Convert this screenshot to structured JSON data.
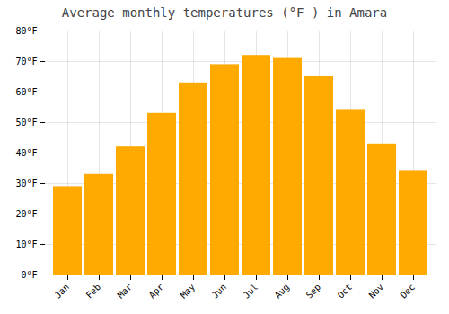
{
  "chart_data": {
    "type": "bar",
    "title": "Average monthly temperatures (°F ) in Amara",
    "categories": [
      "Jan",
      "Feb",
      "Mar",
      "Apr",
      "May",
      "Jun",
      "Jul",
      "Aug",
      "Sep",
      "Oct",
      "Nov",
      "Dec"
    ],
    "values": [
      29,
      33,
      42,
      53,
      63,
      69,
      72,
      71,
      65,
      54,
      43,
      34
    ],
    "color": "#FFAA00",
    "ylim": [
      0,
      80
    ],
    "yticks": [
      {
        "value": 0,
        "label": "0°F"
      },
      {
        "value": 10,
        "label": "10°F"
      },
      {
        "value": 20,
        "label": "20°F"
      },
      {
        "value": 30,
        "label": "30°F"
      },
      {
        "value": 40,
        "label": "40°F"
      },
      {
        "value": 50,
        "label": "50°F"
      },
      {
        "value": 60,
        "label": "60°F"
      },
      {
        "value": 70,
        "label": "70°F"
      },
      {
        "value": 80,
        "label": "80°F"
      }
    ],
    "grid": true
  }
}
